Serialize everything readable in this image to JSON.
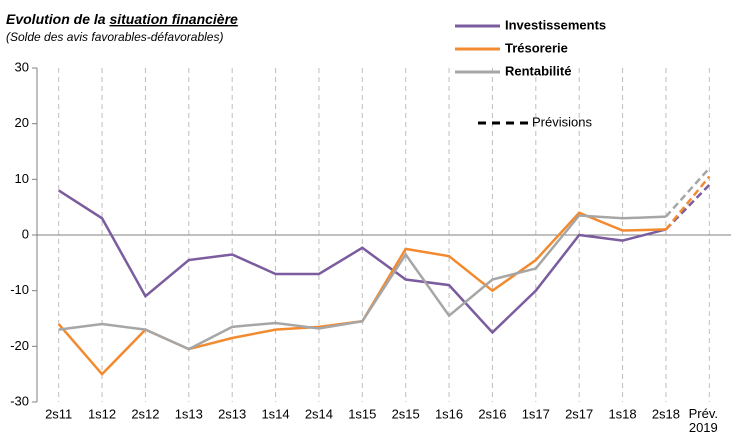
{
  "chart_data": {
    "type": "line",
    "title": {
      "plain": "Evolution de la",
      "underlined": "situation financière"
    },
    "subtitle": "(Solde des avis favorables-défavorables)",
    "categories": [
      "2s11",
      "1s12",
      "2s12",
      "1s13",
      "2s13",
      "1s14",
      "2s14",
      "1s15",
      "2s15",
      "1s16",
      "2s16",
      "1s17",
      "2s17",
      "1s18",
      "2s18",
      "Prév. 2019"
    ],
    "series": [
      {
        "name": "Investissements",
        "color": "#7b5c9e",
        "values": [
          8,
          3,
          -11,
          -4.5,
          -3.5,
          -7,
          -7,
          -2.3,
          -8,
          -9,
          -17.5,
          -10,
          0,
          -1,
          1,
          9
        ]
      },
      {
        "name": "Trésorerie",
        "color": "#f28a30",
        "values": [
          -16,
          -25,
          -17,
          -20.5,
          -18.5,
          -17,
          -16.5,
          -15.5,
          -2.5,
          -3.8,
          -10,
          -4.5,
          4,
          0.8,
          1,
          10.5
        ]
      },
      {
        "name": "Rentabilité",
        "color": "#a6a6a6",
        "values": [
          -17,
          -16,
          -17,
          -20.5,
          -16.5,
          -15.8,
          -16.8,
          -15.5,
          -3.5,
          -14.5,
          -8,
          -6,
          3.5,
          3,
          3.3,
          12
        ]
      }
    ],
    "forecast_legend": "Prévisions",
    "ylim": [
      -30,
      30
    ],
    "yticks": [
      -30,
      -20,
      -10,
      0,
      10,
      20,
      30
    ],
    "grid": true
  }
}
